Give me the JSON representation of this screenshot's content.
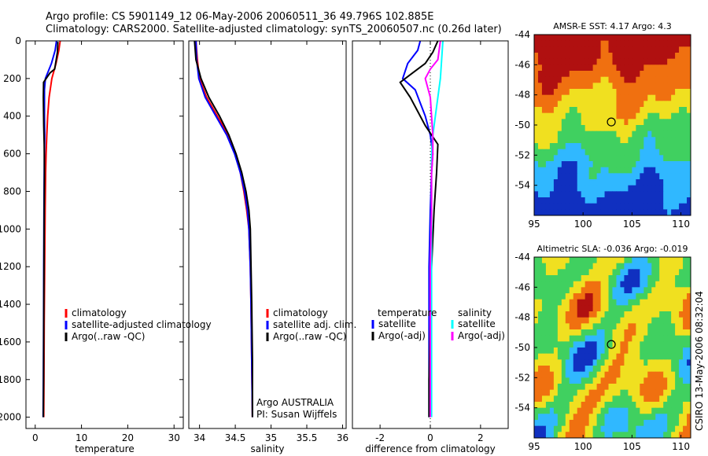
{
  "header": {
    "title_line1": "Argo profile: CS 5901149_12 06-May-2006 20060511_36 49.796S 102.885E",
    "title_line2": "Climatology: CARS2000. Satellite-adjusted climatology: synTS_20060507.nc (0.26d later)"
  },
  "side_label": "CSIRO 13-May-2006 08:32:04",
  "chart_data": [
    {
      "id": "temperature",
      "type": "line",
      "xlabel": "temperature",
      "ylabel": "",
      "xlim": [
        -2,
        32
      ],
      "ylim": [
        2060,
        0
      ],
      "xticks": [
        0,
        10,
        20,
        30
      ],
      "yticks": [
        0,
        200,
        400,
        600,
        800,
        1000,
        1200,
        1400,
        1600,
        1800,
        2000
      ],
      "legend": [
        "climatology",
        "satellite-adjusted climatology",
        "Argo(..raw -QC)"
      ],
      "legend_loc": "lower-right",
      "series": [
        {
          "name": "climatology",
          "color": "#ff0000",
          "x": [
            5.4,
            5.1,
            4.5,
            3.6,
            3.0,
            2.7,
            2.5,
            2.35,
            2.25,
            2.15,
            2.05,
            1.95,
            1.9,
            1.85
          ],
          "y": [
            0,
            50,
            120,
            200,
            300,
            400,
            500,
            600,
            700,
            900,
            1200,
            1500,
            1800,
            2000
          ]
        },
        {
          "name": "satellite-adjusted climatology",
          "color": "#0000ff",
          "x": [
            4.6,
            4.3,
            3.5,
            2.2,
            2.0,
            2.0,
            2.05,
            2.0,
            1.95,
            1.9,
            1.85,
            1.8,
            1.75,
            1.7
          ],
          "y": [
            0,
            50,
            120,
            200,
            260,
            400,
            500,
            600,
            700,
            900,
            1200,
            1500,
            1800,
            2000
          ]
        },
        {
          "name": "Argo(..raw -QC)",
          "color": "#000000",
          "x": [
            4.9,
            4.8,
            4.2,
            3.2,
            1.8,
            1.75,
            1.85,
            1.95,
            2.0,
            1.95,
            1.9,
            1.85,
            1.8,
            1.75
          ],
          "y": [
            5,
            60,
            150,
            170,
            220,
            300,
            450,
            550,
            700,
            900,
            1200,
            1500,
            1800,
            2000
          ]
        }
      ]
    },
    {
      "id": "salinity",
      "type": "line",
      "xlabel": "salinity",
      "ylabel": "",
      "xlim": [
        33.85,
        36.05
      ],
      "ylim": [
        2060,
        0
      ],
      "xticks": [
        34,
        34.5,
        35,
        35.5,
        36
      ],
      "yticks": [],
      "legend": [
        "climatology",
        "satellite adj. clim.",
        "Argo(..raw -QC)"
      ],
      "legend_loc": "lower-right",
      "annotation": [
        "Argo AUSTRALIA",
        "PI: Susan Wijffels"
      ],
      "series": [
        {
          "name": "climatology",
          "color": "#ff0000",
          "x": [
            33.95,
            33.97,
            34.0,
            34.1,
            34.25,
            34.4,
            34.5,
            34.57,
            34.62,
            34.66,
            34.69,
            34.71,
            34.72,
            34.73,
            34.74
          ],
          "y": [
            0,
            100,
            200,
            300,
            400,
            500,
            600,
            700,
            800,
            900,
            1000,
            1200,
            1400,
            1700,
            2000
          ]
        },
        {
          "name": "satellite adj. clim.",
          "color": "#0000ff",
          "x": [
            33.95,
            33.96,
            33.99,
            34.08,
            34.23,
            34.38,
            34.49,
            34.57,
            34.63,
            34.67,
            34.69,
            34.71,
            34.72,
            34.73,
            34.74
          ],
          "y": [
            0,
            100,
            200,
            300,
            400,
            500,
            600,
            700,
            800,
            900,
            1000,
            1200,
            1400,
            1700,
            2000
          ]
        },
        {
          "name": "Argo(..raw -QC)",
          "color": "#000000",
          "x": [
            33.93,
            33.95,
            34.02,
            34.13,
            34.28,
            34.41,
            34.51,
            34.59,
            34.65,
            34.69,
            34.71,
            34.72,
            34.73,
            34.74,
            34.74
          ],
          "y": [
            0,
            100,
            200,
            300,
            400,
            500,
            600,
            700,
            800,
            900,
            1000,
            1200,
            1400,
            1700,
            2000
          ]
        }
      ]
    },
    {
      "id": "difference",
      "type": "line",
      "xlabel": "difference from climatology",
      "ylabel": "",
      "xlim": [
        -3.1,
        3.1
      ],
      "ylim": [
        2060,
        0
      ],
      "xticks": [
        -2,
        0,
        2
      ],
      "yticks": [],
      "legend_groups": [
        {
          "heading": "temperature",
          "entries": [
            "satellite",
            "Argo(-adj)"
          ]
        },
        {
          "heading": "salinity",
          "entries": [
            "satellite",
            "Argo(-adj)"
          ]
        }
      ],
      "series": [
        {
          "name": "satellite",
          "group": "temperature",
          "color": "#0000ff",
          "x": [
            -0.4,
            -0.5,
            -0.9,
            -1.1,
            -0.6,
            -0.2,
            0.0,
            0.1,
            0.05,
            0.0,
            -0.05,
            -0.05,
            -0.05,
            -0.05
          ],
          "y": [
            0,
            50,
            120,
            200,
            260,
            400,
            500,
            600,
            700,
            900,
            1200,
            1500,
            1800,
            2000
          ]
        },
        {
          "name": "Argo(-adj)",
          "group": "temperature",
          "color": "#000000",
          "x": [
            0.3,
            0.1,
            -0.2,
            -0.7,
            -1.2,
            -0.8,
            -0.2,
            0.3,
            0.25,
            0.15,
            0.05,
            0.0,
            -0.05,
            -0.05
          ],
          "y": [
            0,
            60,
            120,
            170,
            220,
            300,
            450,
            550,
            700,
            900,
            1200,
            1500,
            1800,
            2000
          ]
        },
        {
          "name": "satellite",
          "group": "salinity",
          "color": "#00ffff",
          "x": [
            0.5,
            0.45,
            0.4,
            0.3,
            0.2,
            0.1,
            0.05,
            0.05,
            0.05,
            0.05,
            0.05,
            0.05,
            0.05,
            0.05
          ],
          "y": [
            0,
            100,
            200,
            300,
            400,
            500,
            600,
            700,
            800,
            900,
            1200,
            1500,
            1800,
            2000
          ]
        },
        {
          "name": "Argo(-adj)",
          "group": "salinity",
          "color": "#ff00ff",
          "x": [
            0.4,
            0.3,
            0.0,
            -0.2,
            0.0,
            0.1,
            0.1,
            0.05,
            0.05,
            0.05,
            0.0,
            0.0,
            0.0,
            0.0
          ],
          "y": [
            0,
            100,
            150,
            200,
            300,
            500,
            600,
            700,
            800,
            900,
            1200,
            1500,
            1800,
            2000
          ]
        }
      ]
    },
    {
      "id": "sst_map",
      "type": "heatmap",
      "title": "AMSR-E SST: 4.17 Argo: 4.3",
      "xlim": [
        95,
        111
      ],
      "ylim": [
        -56,
        -44
      ],
      "xticks": [
        95,
        100,
        105,
        110
      ],
      "yticks": [
        -44,
        -46,
        -48,
        -50,
        -52,
        -54
      ],
      "colors": [
        "#1030c0",
        "#30b8ff",
        "#40d060",
        "#f0e020",
        "#f07010",
        "#b01010"
      ],
      "marker": {
        "lon": 102.885,
        "lat": -49.796
      }
    },
    {
      "id": "sla_map",
      "type": "heatmap",
      "title": "Altimetric SLA: -0.036 Argo: -0.019",
      "xlim": [
        95,
        111
      ],
      "ylim": [
        -56,
        -44
      ],
      "xticks": [
        95,
        100,
        105,
        110
      ],
      "yticks": [
        -44,
        -46,
        -48,
        -50,
        -52,
        -54
      ],
      "colors": [
        "#1030c0",
        "#30b8ff",
        "#40d060",
        "#f0e020",
        "#f07010",
        "#b01010"
      ],
      "marker": {
        "lon": 102.885,
        "lat": -49.796
      }
    }
  ]
}
